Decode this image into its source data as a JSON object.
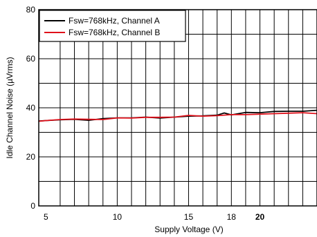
{
  "chart_data": {
    "type": "line",
    "xlabel": "Supply Voltage (V)",
    "ylabel": "Idle Channel Noise (µVrms)",
    "xlim": [
      4.5,
      24
    ],
    "ylim": [
      0,
      80
    ],
    "x_ticks": [
      {
        "value": 5,
        "label": "5"
      },
      {
        "value": 10,
        "label": "10"
      },
      {
        "value": 15,
        "label": "15"
      },
      {
        "value": 18,
        "label": "18"
      },
      {
        "value": 20,
        "label": "20",
        "bold": true
      }
    ],
    "y_ticks": [
      {
        "value": 0,
        "label": "0"
      },
      {
        "value": 20,
        "label": "20"
      },
      {
        "value": 40,
        "label": "40"
      },
      {
        "value": 60,
        "label": "60"
      },
      {
        "value": 80,
        "label": "80"
      }
    ],
    "x_minor_grid": [
      4.5,
      6,
      7,
      8,
      9,
      10,
      11,
      12,
      13,
      14,
      15,
      16,
      17,
      18,
      19,
      20,
      21,
      22,
      23,
      24
    ],
    "y_minor_grid": [
      10,
      20,
      30,
      40,
      50,
      60,
      70
    ],
    "grid": true,
    "legend_position": "top-left",
    "series": [
      {
        "name": "Fsw=768kHz, Channel A",
        "color": "#000000",
        "x": [
          4.5,
          5,
          6,
          7,
          8,
          9,
          10,
          11,
          12,
          13,
          14,
          15,
          16,
          17,
          17.5,
          18,
          19,
          20,
          21,
          22,
          23,
          24
        ],
        "y": [
          34.6,
          34.8,
          35.1,
          35.3,
          34.9,
          35.6,
          35.9,
          35.9,
          36.2,
          35.8,
          36.2,
          36.6,
          36.7,
          37.0,
          37.9,
          37.1,
          38.1,
          38.0,
          38.5,
          38.6,
          38.6,
          39.0
        ]
      },
      {
        "name": "Fsw=768kHz, Channel B",
        "color": "#e0101a",
        "x": [
          4.5,
          5,
          6,
          7,
          8,
          9,
          10,
          11,
          12,
          13,
          14,
          15,
          16,
          17,
          18,
          19,
          20,
          21,
          22,
          23,
          24
        ],
        "y": [
          34.5,
          34.8,
          35.2,
          35.4,
          35.3,
          35.2,
          35.9,
          35.8,
          36.1,
          36.1,
          36.2,
          36.9,
          36.6,
          36.8,
          37.2,
          37.2,
          37.4,
          37.6,
          37.8,
          38.0,
          37.6
        ]
      }
    ]
  }
}
